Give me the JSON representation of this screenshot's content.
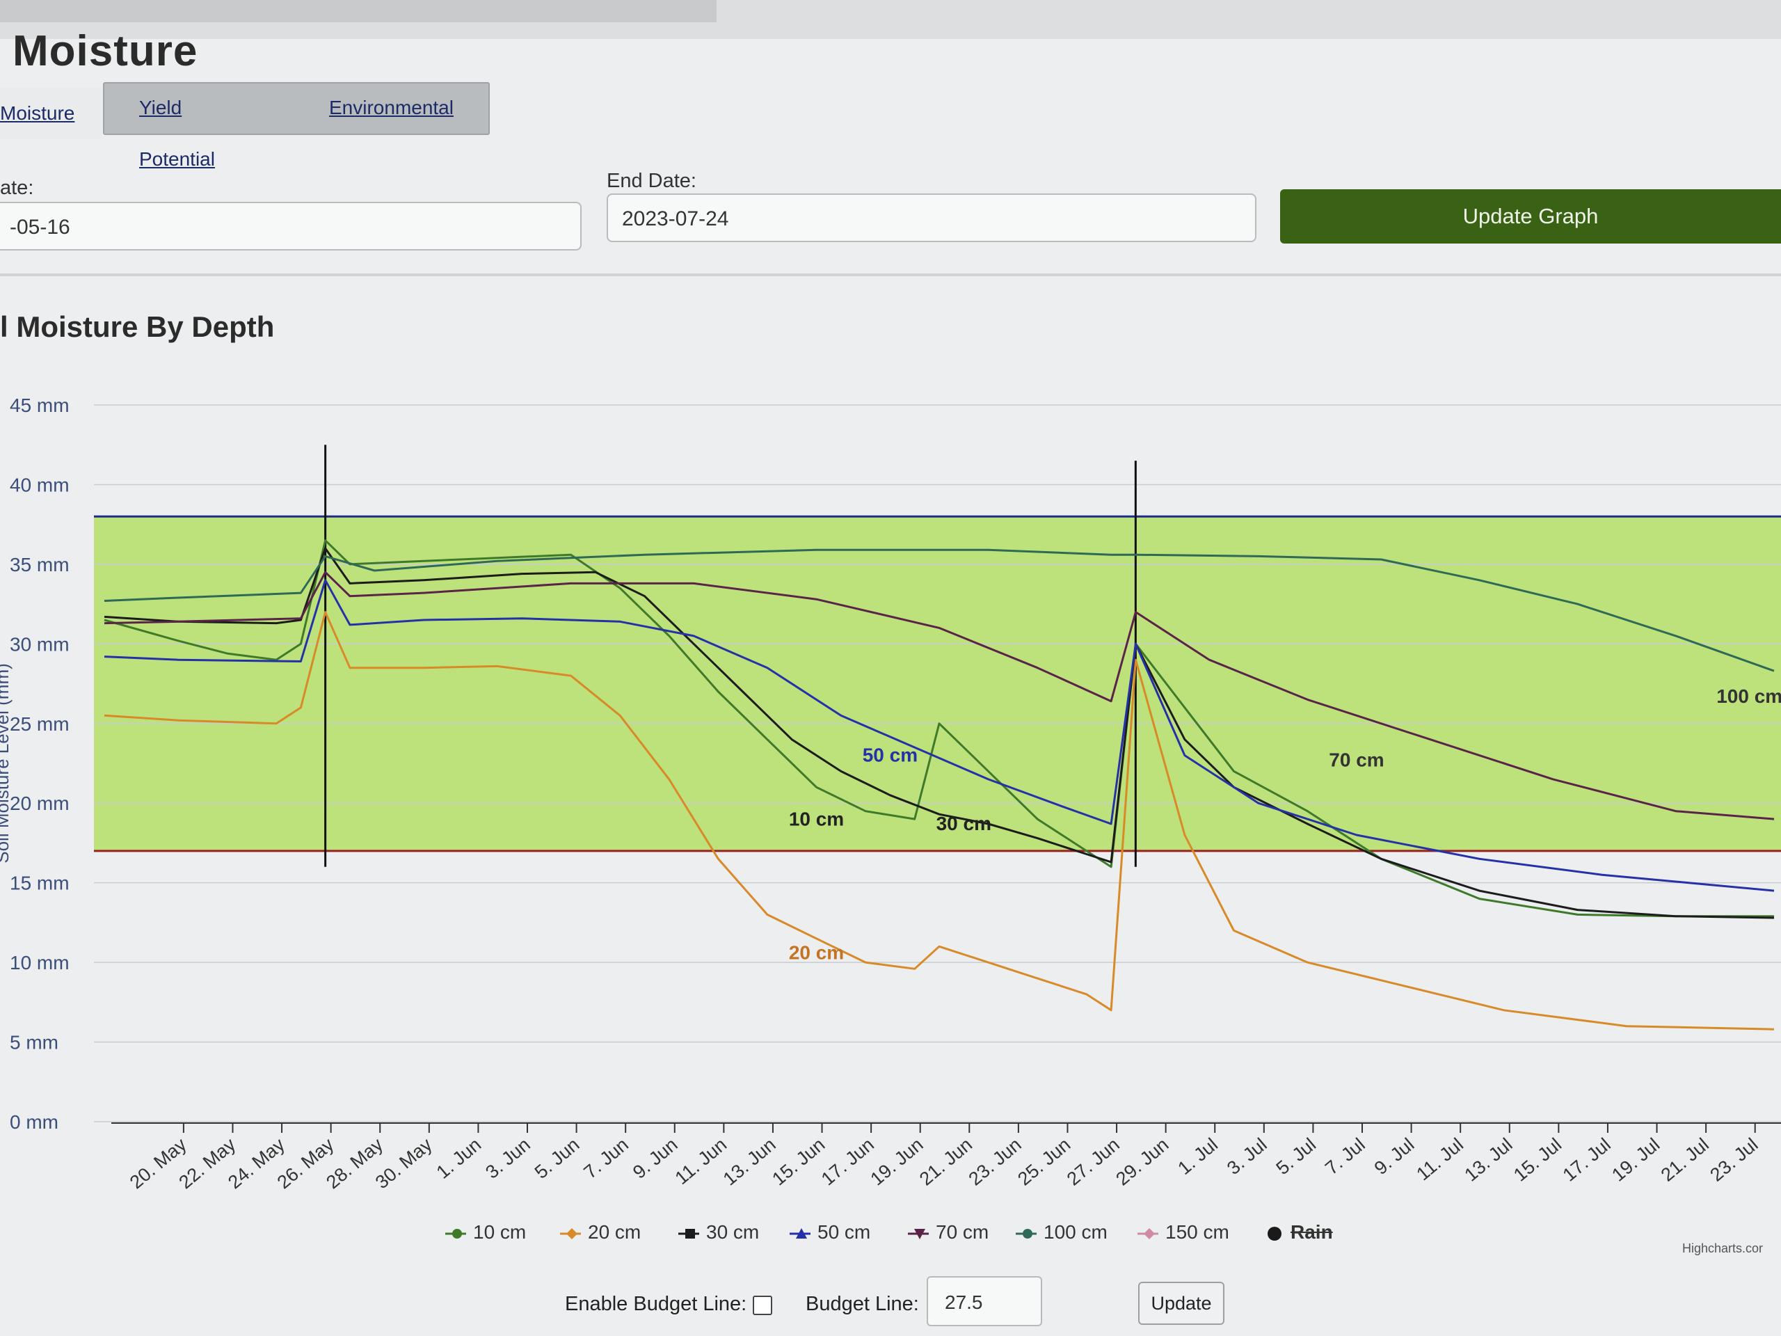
{
  "page": {
    "title": "Moisture"
  },
  "tabs": [
    {
      "label": "Moisture"
    },
    {
      "label": "Yield Potential"
    },
    {
      "label": "Environmental"
    }
  ],
  "start_date": {
    "label": "ate:",
    "value": "-05-16"
  },
  "end_date": {
    "label": "End Date:",
    "value": "2023-07-24"
  },
  "update_graph_label": "Update Graph",
  "chart_title": "l Moisture By Depth",
  "chart_data": {
    "type": "line",
    "ylabel": "Soil Moisture Level (mm)",
    "ylim": [
      0,
      45
    ],
    "y_ticks": [
      "45 mm",
      "40 mm",
      "35 mm",
      "30 mm",
      "25 mm",
      "20 mm",
      "15 mm",
      "10 mm",
      "5 mm",
      "0 mm"
    ],
    "x_ticks": [
      "20. May",
      "22. May",
      "24. May",
      "26. May",
      "28. May",
      "30. May",
      "1. Jun",
      "3. Jun",
      "5. Jun",
      "7. Jun",
      "9. Jun",
      "11. Jun",
      "13. Jun",
      "15. Jun",
      "17. Jun",
      "19. Jun",
      "21. Jun",
      "23. Jun",
      "25. Jun",
      "27. Jun",
      "29. Jun",
      "1. Jul",
      "3. Jul",
      "5. Jul",
      "7. Jul",
      "9. Jul",
      "11. Jul",
      "13. Jul",
      "15. Jul",
      "17. Jul",
      "19. Jul",
      "21. Jul",
      "23. Jul"
    ],
    "x_start": "2023-05-17",
    "x_end": "2023-07-24",
    "bands": [
      {
        "from": 17,
        "to": 38,
        "color": "#b6df66"
      }
    ],
    "plot_lines": [
      {
        "value": 38,
        "color": "#1f2a8a"
      },
      {
        "value": 17,
        "color": "#9a1f1f"
      }
    ],
    "series": [
      {
        "name": "10 cm",
        "color": "#3e7a2a",
        "points": [
          [
            "2023-05-17",
            31.5
          ],
          [
            "2023-05-20",
            30.2
          ],
          [
            "2023-05-22",
            29.4
          ],
          [
            "2023-05-24",
            29.0
          ],
          [
            "2023-05-25",
            30.0
          ],
          [
            "2023-05-26",
            36.5
          ],
          [
            "2023-05-27",
            35.0
          ],
          [
            "2023-05-30",
            35.2
          ],
          [
            "2023-06-02",
            35.4
          ],
          [
            "2023-06-05",
            35.6
          ],
          [
            "2023-06-07",
            33.5
          ],
          [
            "2023-06-09",
            30.5
          ],
          [
            "2023-06-11",
            27.0
          ],
          [
            "2023-06-13",
            24.0
          ],
          [
            "2023-06-15",
            21.0
          ],
          [
            "2023-06-17",
            19.5
          ],
          [
            "2023-06-19",
            19.0
          ],
          [
            "2023-06-20",
            25.0
          ],
          [
            "2023-06-22",
            22.0
          ],
          [
            "2023-06-24",
            19.0
          ],
          [
            "2023-06-26",
            17.0
          ],
          [
            "2023-06-27",
            16.0
          ],
          [
            "2023-06-28",
            30.0
          ],
          [
            "2023-06-30",
            26.0
          ],
          [
            "2023-07-02",
            22.0
          ],
          [
            "2023-07-05",
            19.5
          ],
          [
            "2023-07-08",
            16.5
          ],
          [
            "2023-07-12",
            14.0
          ],
          [
            "2023-07-16",
            13.0
          ],
          [
            "2023-07-20",
            12.9
          ],
          [
            "2023-07-24",
            12.9
          ]
        ]
      },
      {
        "name": "20 cm",
        "color": "#d98a28",
        "points": [
          [
            "2023-05-17",
            25.5
          ],
          [
            "2023-05-20",
            25.2
          ],
          [
            "2023-05-24",
            25.0
          ],
          [
            "2023-05-25",
            26.0
          ],
          [
            "2023-05-26",
            32.0
          ],
          [
            "2023-05-27",
            28.5
          ],
          [
            "2023-05-30",
            28.5
          ],
          [
            "2023-06-02",
            28.6
          ],
          [
            "2023-06-05",
            28.0
          ],
          [
            "2023-06-07",
            25.5
          ],
          [
            "2023-06-09",
            21.5
          ],
          [
            "2023-06-11",
            16.5
          ],
          [
            "2023-06-13",
            13.0
          ],
          [
            "2023-06-15",
            11.5
          ],
          [
            "2023-06-17",
            10.0
          ],
          [
            "2023-06-19",
            9.6
          ],
          [
            "2023-06-20",
            11.0
          ],
          [
            "2023-06-23",
            9.5
          ],
          [
            "2023-06-26",
            8.0
          ],
          [
            "2023-06-27",
            7.0
          ],
          [
            "2023-06-28",
            29.0
          ],
          [
            "2023-06-30",
            18.0
          ],
          [
            "2023-07-02",
            12.0
          ],
          [
            "2023-07-05",
            10.0
          ],
          [
            "2023-07-09",
            8.5
          ],
          [
            "2023-07-13",
            7.0
          ],
          [
            "2023-07-18",
            6.0
          ],
          [
            "2023-07-24",
            5.8
          ]
        ]
      },
      {
        "name": "30 cm",
        "color": "#1c1c1c",
        "points": [
          [
            "2023-05-17",
            31.7
          ],
          [
            "2023-05-20",
            31.4
          ],
          [
            "2023-05-24",
            31.3
          ],
          [
            "2023-05-25",
            31.5
          ],
          [
            "2023-05-26",
            36.0
          ],
          [
            "2023-05-27",
            33.8
          ],
          [
            "2023-05-30",
            34.0
          ],
          [
            "2023-06-03",
            34.4
          ],
          [
            "2023-06-06",
            34.5
          ],
          [
            "2023-06-08",
            33.0
          ],
          [
            "2023-06-10",
            30.0
          ],
          [
            "2023-06-12",
            27.0
          ],
          [
            "2023-06-14",
            24.0
          ],
          [
            "2023-06-16",
            22.0
          ],
          [
            "2023-06-18",
            20.5
          ],
          [
            "2023-06-20",
            19.3
          ],
          [
            "2023-06-22",
            18.7
          ],
          [
            "2023-06-24",
            17.8
          ],
          [
            "2023-06-26",
            16.8
          ],
          [
            "2023-06-27",
            16.3
          ],
          [
            "2023-06-28",
            30.0
          ],
          [
            "2023-06-30",
            24.0
          ],
          [
            "2023-07-02",
            21.0
          ],
          [
            "2023-07-05",
            18.7
          ],
          [
            "2023-07-08",
            16.5
          ],
          [
            "2023-07-12",
            14.5
          ],
          [
            "2023-07-16",
            13.3
          ],
          [
            "2023-07-20",
            12.9
          ],
          [
            "2023-07-24",
            12.8
          ]
        ]
      },
      {
        "name": "50 cm",
        "color": "#2531a6",
        "points": [
          [
            "2023-05-17",
            29.2
          ],
          [
            "2023-05-20",
            29.0
          ],
          [
            "2023-05-25",
            28.9
          ],
          [
            "2023-05-26",
            34.0
          ],
          [
            "2023-05-27",
            31.2
          ],
          [
            "2023-05-30",
            31.5
          ],
          [
            "2023-06-03",
            31.6
          ],
          [
            "2023-06-07",
            31.4
          ],
          [
            "2023-06-10",
            30.5
          ],
          [
            "2023-06-13",
            28.5
          ],
          [
            "2023-06-16",
            25.5
          ],
          [
            "2023-06-19",
            23.5
          ],
          [
            "2023-06-22",
            21.5
          ],
          [
            "2023-06-25",
            19.8
          ],
          [
            "2023-06-27",
            18.7
          ],
          [
            "2023-06-28",
            30.0
          ],
          [
            "2023-06-30",
            23.0
          ],
          [
            "2023-07-03",
            20.0
          ],
          [
            "2023-07-07",
            18.0
          ],
          [
            "2023-07-12",
            16.5
          ],
          [
            "2023-07-17",
            15.5
          ],
          [
            "2023-07-24",
            14.5
          ]
        ]
      },
      {
        "name": "70 cm",
        "color": "#5a2348",
        "points": [
          [
            "2023-05-17",
            31.3
          ],
          [
            "2023-05-20",
            31.4
          ],
          [
            "2023-05-25",
            31.6
          ],
          [
            "2023-05-26",
            34.5
          ],
          [
            "2023-05-27",
            33.0
          ],
          [
            "2023-05-30",
            33.2
          ],
          [
            "2023-06-05",
            33.8
          ],
          [
            "2023-06-10",
            33.8
          ],
          [
            "2023-06-15",
            32.8
          ],
          [
            "2023-06-20",
            31.0
          ],
          [
            "2023-06-24",
            28.5
          ],
          [
            "2023-06-27",
            26.4
          ],
          [
            "2023-06-28",
            32.0
          ],
          [
            "2023-07-01",
            29.0
          ],
          [
            "2023-07-05",
            26.5
          ],
          [
            "2023-07-10",
            24.0
          ],
          [
            "2023-07-15",
            21.5
          ],
          [
            "2023-07-20",
            19.5
          ],
          [
            "2023-07-24",
            19.0
          ]
        ]
      },
      {
        "name": "100 cm",
        "color": "#2f6a57",
        "points": [
          [
            "2023-05-17",
            32.7
          ],
          [
            "2023-05-20",
            32.9
          ],
          [
            "2023-05-25",
            33.2
          ],
          [
            "2023-05-26",
            35.5
          ],
          [
            "2023-05-28",
            34.6
          ],
          [
            "2023-06-02",
            35.2
          ],
          [
            "2023-06-08",
            35.6
          ],
          [
            "2023-06-15",
            35.9
          ],
          [
            "2023-06-22",
            35.9
          ],
          [
            "2023-06-27",
            35.6
          ],
          [
            "2023-06-28",
            35.6
          ],
          [
            "2023-07-03",
            35.5
          ],
          [
            "2023-07-08",
            35.3
          ],
          [
            "2023-07-12",
            34.0
          ],
          [
            "2023-07-16",
            32.5
          ],
          [
            "2023-07-20",
            30.5
          ],
          [
            "2023-07-24",
            28.3
          ]
        ]
      },
      {
        "name": "150 cm",
        "color": "#d08aa4",
        "points": []
      },
      {
        "name": "Rain",
        "color": "#1a1a1a",
        "points": []
      }
    ],
    "rain_spikes": [
      {
        "date": "2023-05-26",
        "value": 42.5
      },
      {
        "date": "2023-06-28",
        "value": 41.5
      }
    ],
    "line_labels": [
      {
        "text": "10 cm",
        "date": "2023-06-15",
        "value": 18.6,
        "color": "#222222"
      },
      {
        "text": "20 cm",
        "date": "2023-06-15",
        "value": 10.2,
        "color": "#c47420"
      },
      {
        "text": "30 cm",
        "date": "2023-06-21",
        "value": 18.3,
        "color": "#222222"
      },
      {
        "text": "50 cm",
        "date": "2023-06-18",
        "value": 22.6,
        "color": "#2531a6"
      },
      {
        "text": "70 cm",
        "date": "2023-07-07",
        "value": 22.3,
        "color": "#333333"
      },
      {
        "text": "100 cm",
        "date": "2023-07-23",
        "value": 26.3,
        "color": "#333333"
      }
    ]
  },
  "legend": [
    {
      "label": "10 cm",
      "color": "#3e7a2a",
      "symbol": "circle"
    },
    {
      "label": "20 cm",
      "color": "#d98a28",
      "symbol": "diamond"
    },
    {
      "label": "30 cm",
      "color": "#1c1c1c",
      "symbol": "square"
    },
    {
      "label": "50 cm",
      "color": "#2531a6",
      "symbol": "triangle"
    },
    {
      "label": "70 cm",
      "color": "#5a2348",
      "symbol": "triangle-down"
    },
    {
      "label": "100 cm",
      "color": "#2f6a57",
      "symbol": "circle"
    },
    {
      "label": "150 cm",
      "color": "#d08aa4",
      "symbol": "diamond"
    },
    {
      "label": "Rain",
      "color": "#1a1a1a",
      "symbol": "dot",
      "hidden": true
    }
  ],
  "credit": "Highcharts.cor",
  "budget": {
    "enable_label": "Enable Budget Line:",
    "line_label": "Budget Line:",
    "value": "27.5",
    "update_label": "Update"
  }
}
